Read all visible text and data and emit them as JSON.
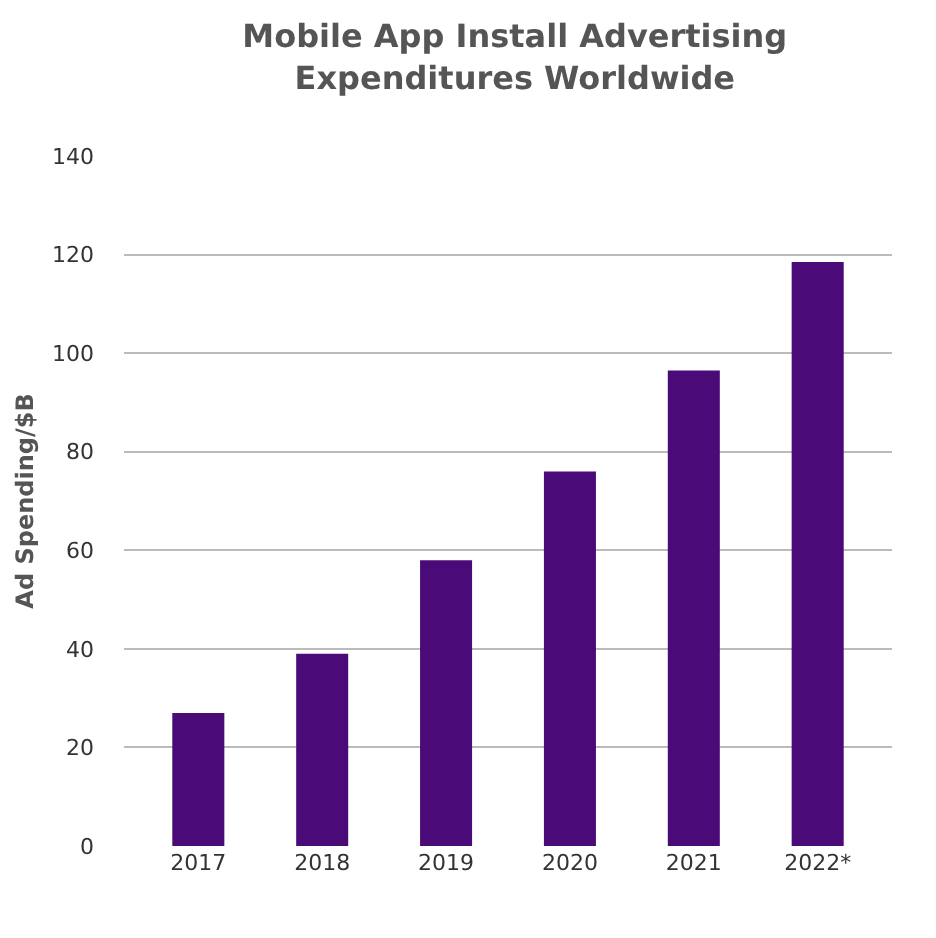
{
  "chart_data": {
    "type": "bar",
    "title": "Mobile App Install Advertising Expenditures Worldwide",
    "ylabel": "Ad Spending/$B",
    "categories": [
      "2017",
      "2018",
      "2019",
      "2020",
      "2021",
      "2022*"
    ],
    "values": [
      27,
      39,
      58,
      76,
      96.5,
      118.5
    ],
    "color": "#4a0b78",
    "ylim": [
      0,
      140
    ],
    "yticks": [
      0,
      20,
      40,
      60,
      80,
      100,
      120,
      140
    ],
    "grid": "y"
  }
}
